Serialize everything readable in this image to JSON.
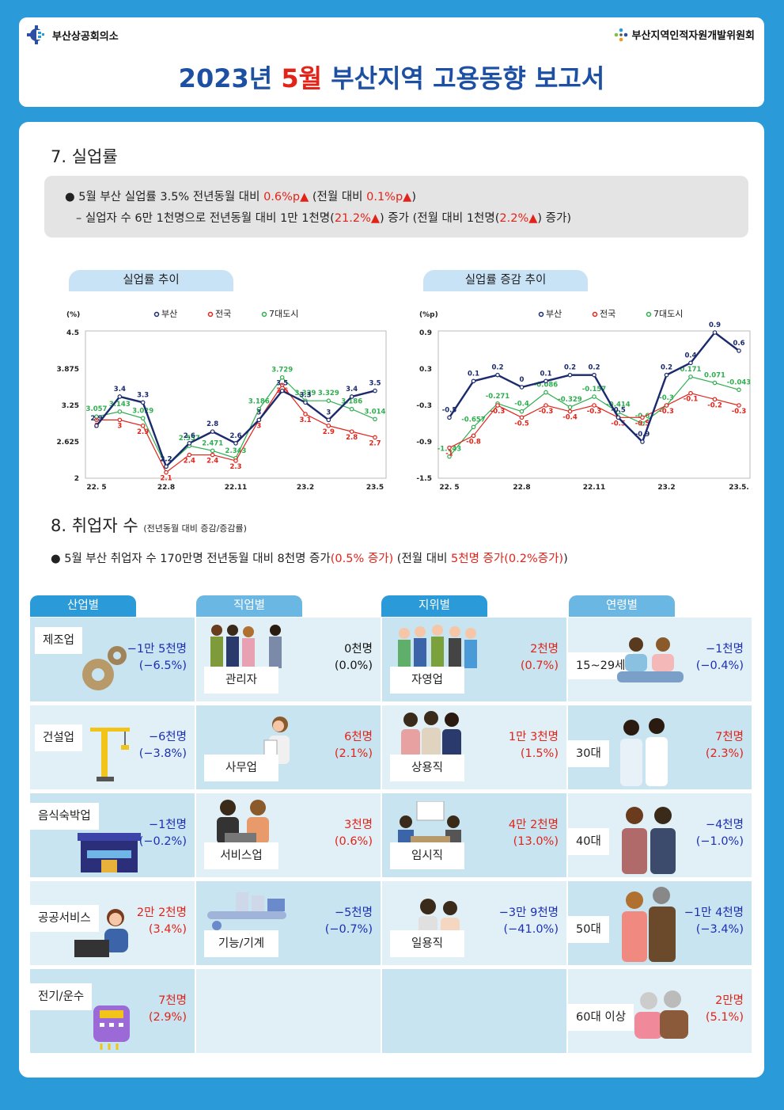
{
  "header": {
    "org_left": "부산상공회의소",
    "org_right": "부산지역인적자원개발위원회",
    "title_prefix": "2023년",
    "title_month": "5월",
    "title_suffix": "부산지역 고용동향 보고서"
  },
  "section7": {
    "title": "7. 실업률",
    "line1_a": "●  5월 부산 실업률 3.5% 전년동월 대비",
    "line1_b": "0.6%p▲",
    "line1_c": "(전월 대비",
    "line1_d": "0.1%p▲",
    "line1_e": ")",
    "line2_a": "–  실업자 수 6만 1천명으로 전년동월 대비 1만 1천명(",
    "line2_b": "21.2%▲",
    "line2_c": ") 증가 (전월 대비 1천명(",
    "line2_d": "2.2%▲",
    "line2_e": ") 증가)"
  },
  "legend": {
    "busan": "부산",
    "national": "전국",
    "seven": "7대도시"
  },
  "colors": {
    "busan": "#1a2a6c",
    "national": "#e2231a",
    "seven": "#2eae4f",
    "accent": "#2a9ad8",
    "title": "#1d4fa3"
  },
  "chart_data": [
    {
      "type": "line",
      "title": "실업률 추이",
      "ylabel": "(%)",
      "x": [
        "22.5",
        "22.6",
        "22.7",
        "22.8",
        "22.9",
        "22.10",
        "22.11",
        "22.12",
        "23.1",
        "23.2",
        "23.3",
        "23.4",
        "23.5"
      ],
      "x_tick_labels": [
        "22. 5",
        "22.8",
        "22.11",
        "23.2",
        "23.5"
      ],
      "y_tick_labels": [
        "4.5",
        "3.875",
        "3.25",
        "2.625",
        "2"
      ],
      "ylim": [
        2,
        4.5
      ],
      "series": [
        {
          "name": "부산",
          "values": [
            2.9,
            3.4,
            3.3,
            2.2,
            2.6,
            2.8,
            2.6,
            3.0,
            3.5,
            3.3,
            3.0,
            3.4,
            3.5
          ],
          "labels": [
            "2.9",
            "3.4",
            "3.3",
            "2.2",
            "2.6",
            "2.8",
            "2.6",
            "3",
            "3.5",
            "3.3",
            "3",
            "3.4",
            "3.5"
          ]
        },
        {
          "name": "전국",
          "values": [
            3.0,
            3.0,
            2.9,
            2.1,
            2.4,
            2.4,
            2.3,
            3.0,
            3.6,
            3.1,
            2.9,
            2.8,
            2.7
          ],
          "labels": [
            "3",
            "3",
            "2.9",
            "2.1",
            "2.4",
            "2.4",
            "2.3",
            "3",
            "3.6",
            "3.1",
            "2.9",
            "2.8",
            "2.7"
          ]
        },
        {
          "name": "7대도시",
          "values": [
            3.057,
            3.143,
            3.029,
            2.2,
            2.557,
            2.471,
            2.343,
            3.186,
            3.729,
            3.329,
            3.329,
            3.186,
            3.014
          ],
          "labels": [
            "3.057",
            "3.143",
            "3.029",
            "2.2",
            "2.557",
            "2.471",
            "2.343",
            "3.186",
            "3.729",
            "3.329",
            "3.329",
            "3.186",
            "3.014"
          ]
        }
      ]
    },
    {
      "type": "line",
      "title": "실업률 증감 추이",
      "ylabel": "(%p)",
      "x": [
        "22.5",
        "22.6",
        "22.7",
        "22.8",
        "22.9",
        "22.10",
        "22.11",
        "22.12",
        "23.1",
        "23.2",
        "23.3",
        "23.4",
        "23.5"
      ],
      "x_tick_labels": [
        "22. 5",
        "22.8",
        "22.11",
        "23.2",
        "23.5."
      ],
      "y_tick_labels": [
        "0.9",
        "0.3",
        "-0.3",
        "-0.9",
        "-1.5"
      ],
      "ylim": [
        -1.5,
        0.9
      ],
      "series": [
        {
          "name": "부산",
          "values": [
            -0.5,
            0.1,
            0.2,
            0.0,
            0.1,
            0.2,
            0.2,
            -0.5,
            -0.9,
            0.2,
            0.4,
            0.9,
            0.6
          ],
          "labels": [
            "-0.5",
            "0.1",
            "0.2",
            "0",
            "0.1",
            "0.2",
            "0.2",
            "-0.5",
            "-0.9",
            "0.2",
            "0.4",
            "0.9",
            "0.6"
          ]
        },
        {
          "name": "전국",
          "values": [
            -1.0,
            -0.8,
            -0.3,
            -0.5,
            -0.3,
            -0.4,
            -0.3,
            -0.5,
            -0.5,
            -0.3,
            -0.1,
            -0.2,
            -0.3
          ],
          "labels": [
            "-1",
            "-0.8",
            "-0.3",
            "-0.5",
            "-0.3",
            "-0.4",
            "-0.3",
            "-0.5",
            "-0.5",
            "-0.3",
            "-0.1",
            "-0.2",
            "-0.3"
          ]
        },
        {
          "name": "7대도시",
          "values": [
            -1.143,
            -0.657,
            -0.271,
            -0.4,
            -0.086,
            -0.329,
            -0.157,
            -0.414,
            -0.6,
            -0.3,
            0.171,
            0.071,
            -0.043
          ],
          "labels": [
            "-1.143",
            "-0.657",
            "-0.271",
            "-0.4",
            "-0.086",
            "-0.329",
            "-0.157",
            "-0.414",
            "-0.6",
            "-0.3",
            "0.171",
            "0.071",
            "-0.043"
          ]
        }
      ]
    }
  ],
  "section8": {
    "title": "8.  취업자 수",
    "title_note": "(전년동월 대비 증감/증감률)",
    "line_a": "●  5월 부산 취업자 수 170만명 전년동월 대비 8천명 증가",
    "line_b": "(0.5% 증가)",
    "line_c": "(전월 대비",
    "line_d": "5천명 증가(0.2%증가)",
    "line_e": ")"
  },
  "tabs": [
    "산업별",
    "직업별",
    "지위별",
    "연령별"
  ],
  "industry": [
    {
      "label": "제조업",
      "value": "−1만 5천명",
      "pct": "(−6.5%)",
      "sign": "neg"
    },
    {
      "label": "건설업",
      "value": "−6천명",
      "pct": "(−3.8%)",
      "sign": "neg"
    },
    {
      "label": "음식숙박업",
      "value": "−1천명",
      "pct": "(−0.2%)",
      "sign": "neg"
    },
    {
      "label": "공공서비스",
      "value": "2만 2천명",
      "pct": "(3.4%)",
      "sign": "pos"
    },
    {
      "label": "전기/운수",
      "value": "7천명",
      "pct": "(2.9%)",
      "sign": "pos"
    }
  ],
  "occupation": [
    {
      "label": "관리자",
      "value": "0천명",
      "pct": "(0.0%)",
      "sign": "zero"
    },
    {
      "label": "사무업",
      "value": "6천명",
      "pct": "(2.1%)",
      "sign": "pos"
    },
    {
      "label": "서비스업",
      "value": "3천명",
      "pct": "(0.6%)",
      "sign": "pos"
    },
    {
      "label": "기능/기계",
      "value": "−5천명",
      "pct": "(−0.7%)",
      "sign": "neg"
    }
  ],
  "status": [
    {
      "label": "자영업",
      "value": "2천명",
      "pct": "(0.7%)",
      "sign": "pos"
    },
    {
      "label": "상용직",
      "value": "1만 3천명",
      "pct": "(1.5%)",
      "sign": "pos"
    },
    {
      "label": "임시직",
      "value": "4만 2천명",
      "pct": "(13.0%)",
      "sign": "pos"
    },
    {
      "label": "일용직",
      "value": "−3만 9천명",
      "pct": "(−41.0%)",
      "sign": "neg"
    }
  ],
  "age": [
    {
      "label": "15~29세",
      "value": "−1천명",
      "pct": "(−0.4%)",
      "sign": "neg"
    },
    {
      "label": "30대",
      "value": "7천명",
      "pct": "(2.3%)",
      "sign": "pos"
    },
    {
      "label": "40대",
      "value": "−4천명",
      "pct": "(−1.0%)",
      "sign": "neg"
    },
    {
      "label": "50대",
      "value": "−1만 4천명",
      "pct": "(−3.4%)",
      "sign": "neg"
    },
    {
      "label": "60대 이상",
      "value": "2만명",
      "pct": "(5.1%)",
      "sign": "pos"
    }
  ]
}
